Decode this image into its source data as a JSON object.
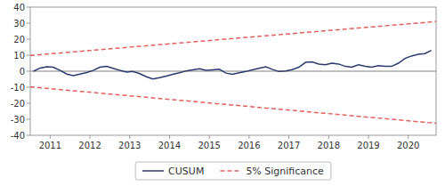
{
  "chart_data": {
    "type": "line",
    "title": "",
    "xlabel": "",
    "ylabel": "",
    "xlim": [
      2010.5,
      2020.7
    ],
    "ylim": [
      -40,
      40
    ],
    "xticks": [
      2011,
      2012,
      2013,
      2014,
      2015,
      2016,
      2017,
      2018,
      2019,
      2020
    ],
    "yticks": [
      -40,
      -30,
      -20,
      -10,
      0,
      10,
      20,
      30,
      40
    ],
    "grid": false,
    "legend": "bottom",
    "hlines": [
      {
        "value": 0,
        "color": "#808080"
      }
    ],
    "series": [
      {
        "name": "CUSUM",
        "color": "#2B3A6E",
        "line_style": "solid",
        "x": [
          2010.58,
          2010.75,
          2010.92,
          2011.08,
          2011.25,
          2011.42,
          2011.58,
          2011.75,
          2011.92,
          2012.08,
          2012.25,
          2012.42,
          2012.58,
          2012.75,
          2012.92,
          2013.08,
          2013.25,
          2013.42,
          2013.58,
          2013.75,
          2013.92,
          2014.08,
          2014.25,
          2014.42,
          2014.58,
          2014.75,
          2014.92,
          2015.08,
          2015.25,
          2015.42,
          2015.58,
          2015.75,
          2015.92,
          2016.08,
          2016.25,
          2016.42,
          2016.58,
          2016.75,
          2016.92,
          2017.08,
          2017.25,
          2017.42,
          2017.58,
          2017.75,
          2017.92,
          2018.08,
          2018.25,
          2018.42,
          2018.58,
          2018.75,
          2018.92,
          2019.08,
          2019.25,
          2019.42,
          2019.58,
          2019.75,
          2019.92,
          2020.08,
          2020.25,
          2020.42,
          2020.58
        ],
        "values": [
          0.0,
          2.0,
          2.8,
          2.5,
          0.5,
          -1.8,
          -2.8,
          -1.8,
          -0.8,
          0.5,
          2.5,
          3.0,
          1.8,
          0.5,
          -0.5,
          -0.2,
          -1.5,
          -3.5,
          -4.8,
          -4.0,
          -3.0,
          -2.0,
          -1.0,
          0.2,
          0.8,
          1.5,
          0.5,
          0.8,
          1.2,
          -1.2,
          -2.0,
          -1.0,
          -0.2,
          0.8,
          1.8,
          2.8,
          1.2,
          -0.2,
          0.2,
          1.0,
          2.5,
          5.5,
          5.8,
          4.5,
          4.0,
          5.0,
          4.5,
          3.0,
          2.5,
          4.0,
          3.0,
          2.5,
          3.5,
          3.0,
          3.0,
          5.0,
          8.0,
          9.5,
          10.5,
          11.0,
          13.0
        ]
      },
      {
        "name": "5% Significance",
        "color": "#E06060",
        "line_style": "dashed",
        "x": [
          2010.5,
          2020.7
        ],
        "upper": [
          9.8,
          31.0
        ],
        "lower": [
          -9.8,
          -32.5
        ]
      }
    ]
  }
}
